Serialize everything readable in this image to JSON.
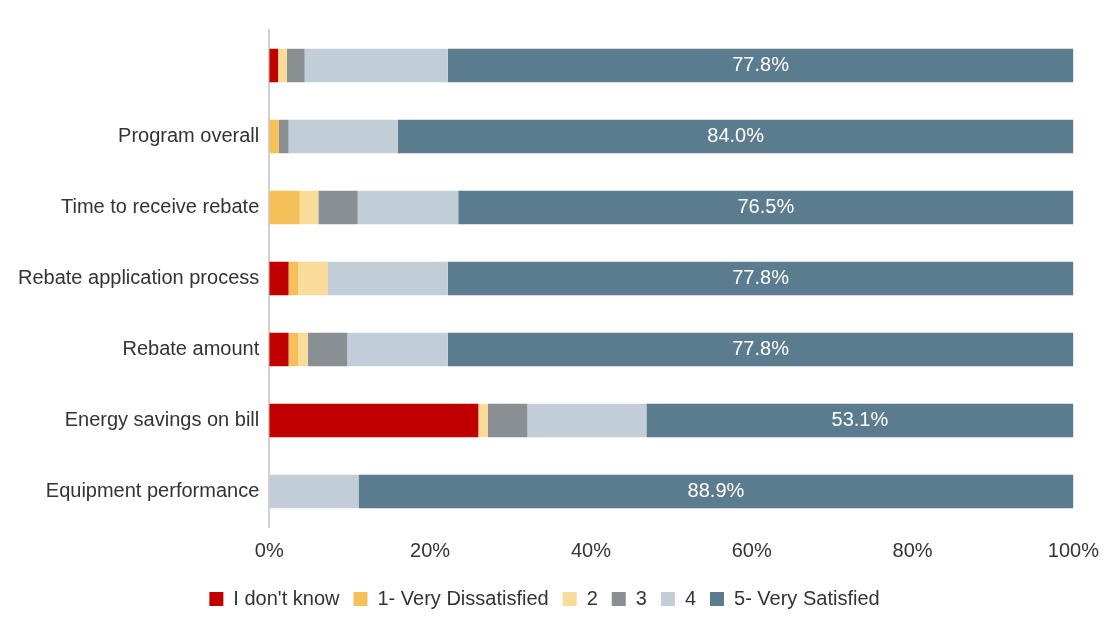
{
  "chart_data": {
    "type": "bar",
    "orientation": "horizontal",
    "stacked": true,
    "categories": [
      null,
      "Program overall",
      "Time to receive rebate",
      "Rebate application process",
      "Rebate amount",
      "Energy savings on bill",
      "Equipment performance"
    ],
    "series": [
      {
        "name": "I don't know",
        "color": "#c00000",
        "values": [
          1.1,
          0,
          0,
          2.4,
          2.4,
          26.0,
          0
        ]
      },
      {
        "name": "1- Very Dissatisfied",
        "color": "#f5c05a",
        "values": [
          0,
          1.2,
          3.8,
          1.2,
          1.2,
          0,
          0
        ]
      },
      {
        "name": "2",
        "color": "#fadc9a",
        "values": [
          1.1,
          0,
          2.3,
          3.7,
          1.2,
          1.2,
          0
        ]
      },
      {
        "name": "3",
        "color": "#8a8f94",
        "values": [
          2.2,
          1.2,
          4.9,
          0,
          4.9,
          4.9,
          0
        ]
      },
      {
        "name": "4",
        "color": "#c1ced8",
        "values": [
          17.8,
          13.6,
          12.5,
          14.9,
          12.5,
          14.8,
          11.1
        ]
      },
      {
        "name": "5- Very Satisfied",
        "color": "#5b7b8f",
        "values": [
          77.8,
          84.0,
          76.5,
          77.8,
          77.8,
          53.1,
          88.9
        ],
        "value_labels": [
          "77.8%",
          "84.0%",
          "76.5%",
          "77.8%",
          "77.8%",
          "53.1%",
          "88.9%"
        ]
      }
    ],
    "xlim": [
      0,
      100
    ],
    "xticks": [
      {
        "value": 0,
        "label": "0%"
      },
      {
        "value": 20,
        "label": "20%"
      },
      {
        "value": 40,
        "label": "40%"
      },
      {
        "value": 60,
        "label": "60%"
      },
      {
        "value": 80,
        "label": "80%"
      },
      {
        "value": 100,
        "label": "100%"
      }
    ],
    "grid": false,
    "legend": "bottom"
  }
}
